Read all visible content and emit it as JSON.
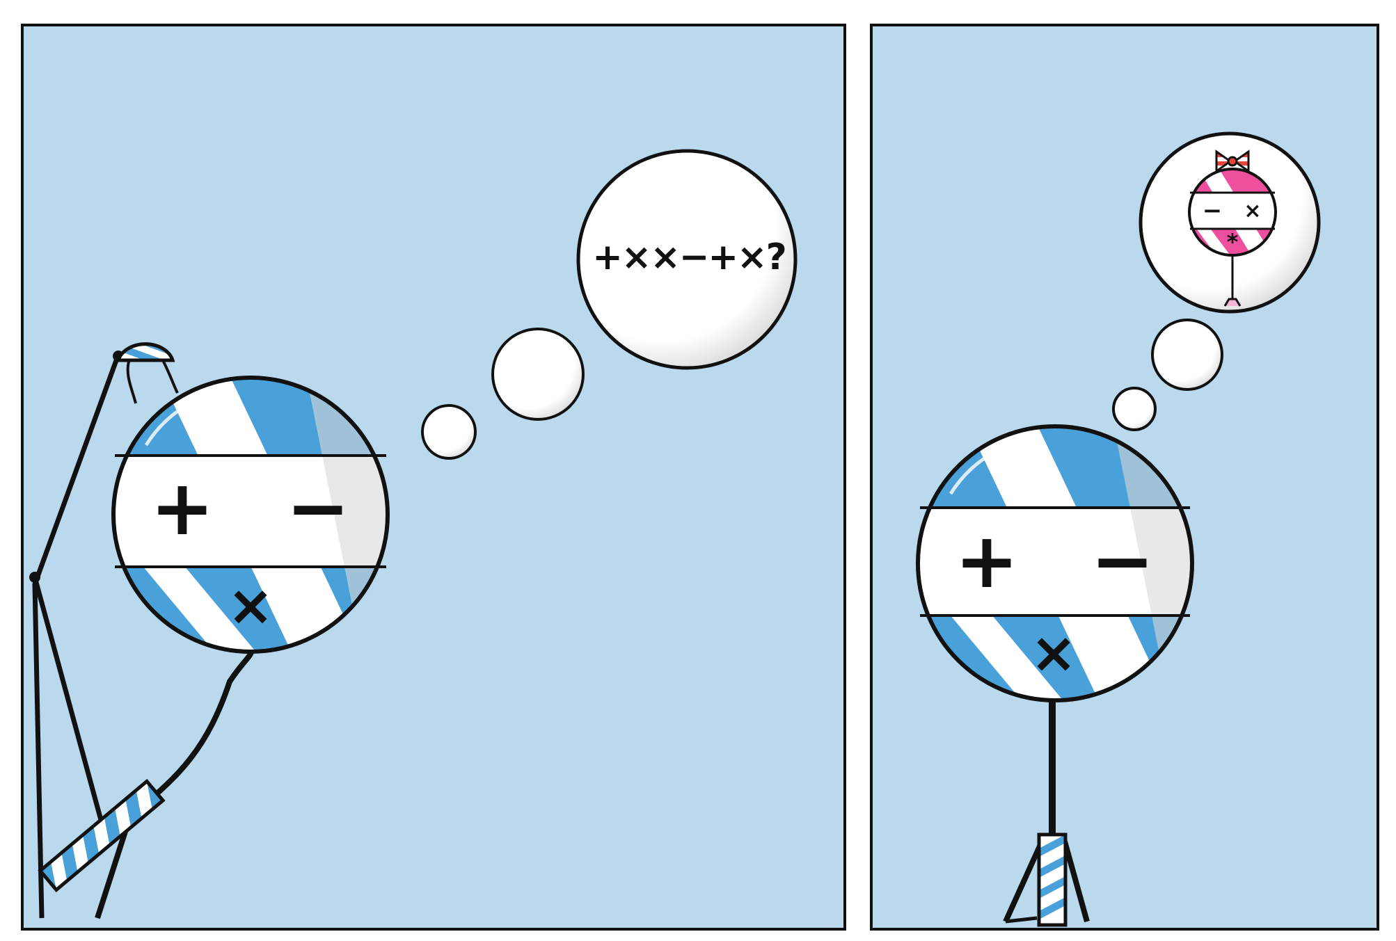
{
  "comic": {
    "panel_1": {
      "thought_text": "+××−+×?",
      "character_face": {
        "left_eye": "+",
        "right_eye": "−",
        "mouth": "×"
      }
    },
    "panel_2": {
      "character_face": {
        "left_eye": "+",
        "right_eye": "−",
        "mouth": "×"
      },
      "thought_face": {
        "left_eye": "−",
        "right_eye": "×",
        "mouth": "*"
      }
    }
  },
  "colors": {
    "sky": "#bbd9ec",
    "blue_stripe": "#4aa0d8",
    "pink_stripe": "#ef4f9f",
    "bubble": "#ffffff",
    "outline": "#111111"
  }
}
